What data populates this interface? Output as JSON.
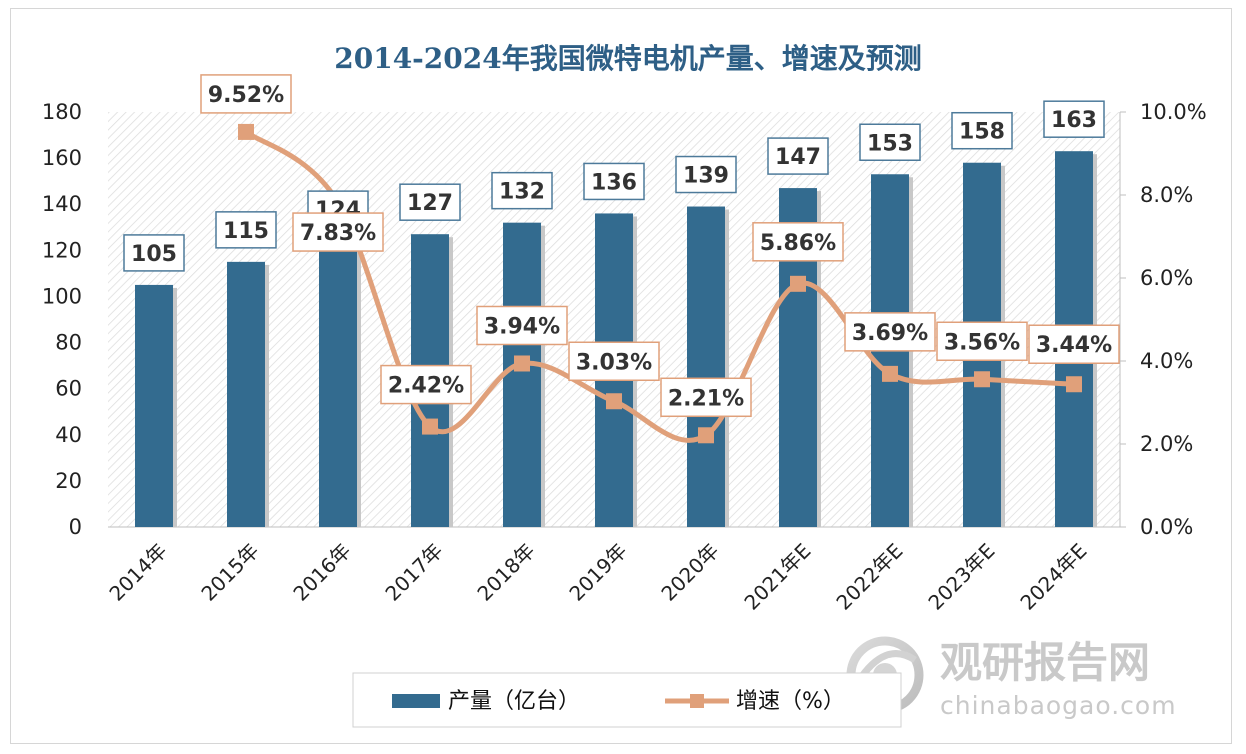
{
  "chart_data": {
    "type": "bar+line",
    "title": "2014-2024年我国微特电机产量、增速及预测",
    "categories": [
      "2014年",
      "2015年",
      "2016年",
      "2017年",
      "2018年",
      "2019年",
      "2020年",
      "2021年E",
      "2022年E",
      "2023年E",
      "2024年E"
    ],
    "series": [
      {
        "name": "产量（亿台）",
        "type": "bar",
        "axis": "left",
        "color": "#336b8f",
        "values": [
          105,
          115,
          124,
          127,
          132,
          136,
          139,
          147,
          153,
          158,
          163
        ]
      },
      {
        "name": "增速（%）",
        "type": "line",
        "axis": "right",
        "color": "#e0a07a",
        "values": [
          null,
          9.52,
          7.83,
          2.42,
          3.94,
          3.03,
          2.21,
          5.86,
          3.69,
          3.56,
          3.44
        ],
        "labels": [
          "",
          "9.52%",
          "7.83%",
          "2.42%",
          "3.94%",
          "3.03%",
          "2.21%",
          "5.86%",
          "3.69%",
          "3.56%",
          "3.44%"
        ]
      }
    ],
    "y_left": {
      "min": 0,
      "max": 180,
      "step": 20,
      "ticks": [
        "0",
        "20",
        "40",
        "60",
        "80",
        "100",
        "120",
        "140",
        "160",
        "180"
      ]
    },
    "y_right": {
      "min": 0,
      "max": 10,
      "step": 2,
      "ticks": [
        "0.0%",
        "2.0%",
        "4.0%",
        "6.0%",
        "8.0%",
        "10.0%"
      ]
    },
    "legend": [
      "产量（亿台）",
      "增速（%）"
    ],
    "legend_position": "bottom"
  },
  "watermark": {
    "cn": "观研报告网",
    "en": "chinabaogao.com"
  }
}
